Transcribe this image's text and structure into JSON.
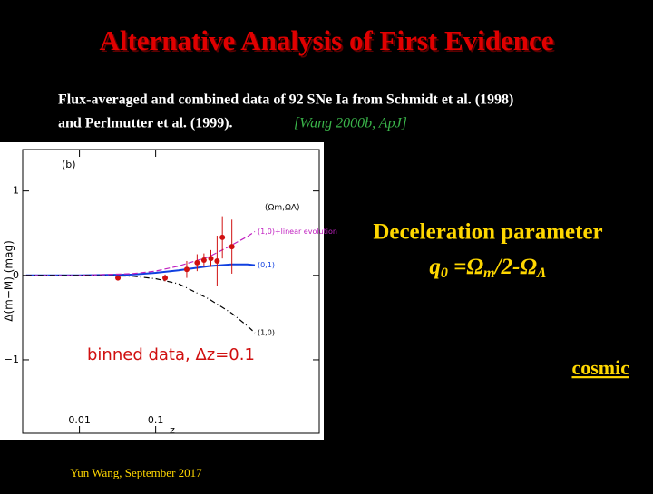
{
  "slide": {
    "title": "Alternative Analysis of First Evidence",
    "caption_line1": "Flux-averaged and combined data of 92 SNe Ia from Schmidt et al. (1998)",
    "caption_line2": "and Perlmutter et al. (1999).",
    "citation": "[Wang 2000b, ApJ]",
    "heading": "Deceleration parameter",
    "formula": {
      "q": "q",
      "q_sub": "0",
      "eq": " =Ω",
      "m_sub": "m",
      "mid": "/2-Ω",
      "l_sub": "Λ"
    },
    "link": "cosmic",
    "footer": "Yun Wang, September 2017"
  },
  "chart_data": {
    "type": "scatter",
    "panel_label": "(b)",
    "annotation": "binned data, Δz=0.1",
    "x_label": "z",
    "y_label": "Δ(m−M) (mag)",
    "xscale": "log",
    "xlim": [
      0.0018,
      14
    ],
    "xticks": [
      0.01,
      0.1
    ],
    "ylim": [
      -1.87,
      1.49
    ],
    "yticks": [
      1,
      0,
      {
        "value": -1,
        "label": "−1"
      }
    ],
    "legend_title": "(Ωm,ΩΛ)",
    "x": [
      0.032,
      0.133,
      0.256,
      0.35,
      0.43,
      0.53,
      0.64,
      0.75,
      1.0
    ],
    "values": [
      -0.03,
      -0.03,
      0.07,
      0.15,
      0.18,
      0.2,
      0.17,
      0.45,
      0.34
    ],
    "errors": [
      0.03,
      0.04,
      0.1,
      0.1,
      0.08,
      0.1,
      0.3,
      0.25,
      0.32
    ],
    "color": "#d01010",
    "curves": {
      "x": [
        0.002,
        0.01,
        0.05,
        0.1,
        0.2,
        0.5,
        1,
        1.6,
        2.0
      ],
      "series": [
        {
          "name": "(0,1)",
          "color": "#1040e0",
          "values": [
            0,
            0,
            0.01,
            0.03,
            0.06,
            0.11,
            0.13,
            0.13,
            0.12
          ]
        },
        {
          "name": "(1,0)+linear evolution",
          "color": "#c020c0",
          "values": [
            0,
            0,
            0.02,
            0.05,
            0.11,
            0.22,
            0.36,
            0.46,
            0.52
          ]
        },
        {
          "name": "(1,0)",
          "color": "#000000",
          "values": [
            0,
            0,
            -0.01,
            -0.04,
            -0.1,
            -0.28,
            -0.45,
            -0.6,
            -0.68
          ]
        }
      ]
    }
  }
}
